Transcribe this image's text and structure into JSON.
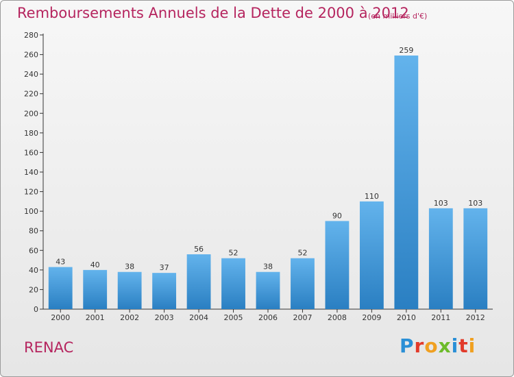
{
  "header": {
    "title": "Remboursements Annuels de la Dette de 2000 à 2012",
    "unit_note": "(en milliers d'€)"
  },
  "footer": {
    "commune": "RENAC",
    "brand": [
      "P",
      "r",
      "o",
      "x",
      "i",
      "t",
      "i"
    ]
  },
  "colors": {
    "title": "#b5245e",
    "bar_top": "#63b3ec",
    "bar_bottom": "#2a7fc2",
    "axis": "#333333"
  },
  "chart_data": {
    "type": "bar",
    "categories": [
      "2000",
      "2001",
      "2002",
      "2003",
      "2004",
      "2005",
      "2006",
      "2007",
      "2008",
      "2009",
      "2010",
      "2011",
      "2012"
    ],
    "values": [
      43,
      40,
      38,
      37,
      56,
      52,
      38,
      52,
      90,
      110,
      259,
      103,
      103
    ],
    "ylim": [
      0,
      280
    ],
    "yticks": [
      0,
      20,
      40,
      60,
      80,
      100,
      120,
      140,
      160,
      180,
      200,
      220,
      240,
      260,
      280
    ],
    "grid": false,
    "data_labels": true
  }
}
